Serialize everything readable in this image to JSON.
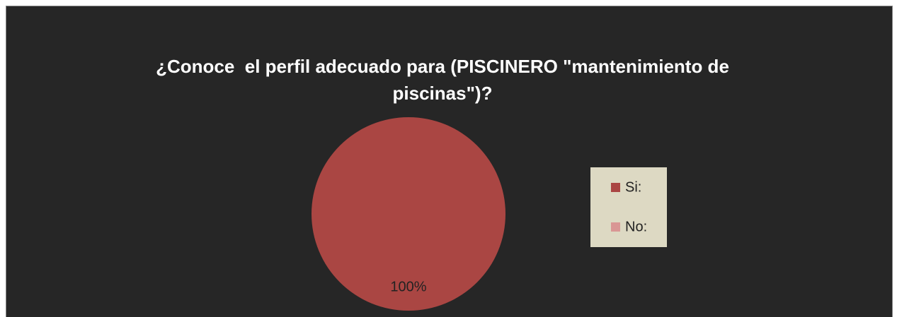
{
  "chart_data": {
    "type": "pie",
    "title": "¿Conoce  el perfil adecuado para (PISCINERO \"mantenimiento de piscinas\")?",
    "categories": [
      "Si:",
      "No:"
    ],
    "values": [
      100,
      0
    ],
    "value_labels": [
      "100%",
      null
    ],
    "colors": [
      "#aa4643",
      "#d99694"
    ],
    "legend": "right"
  }
}
